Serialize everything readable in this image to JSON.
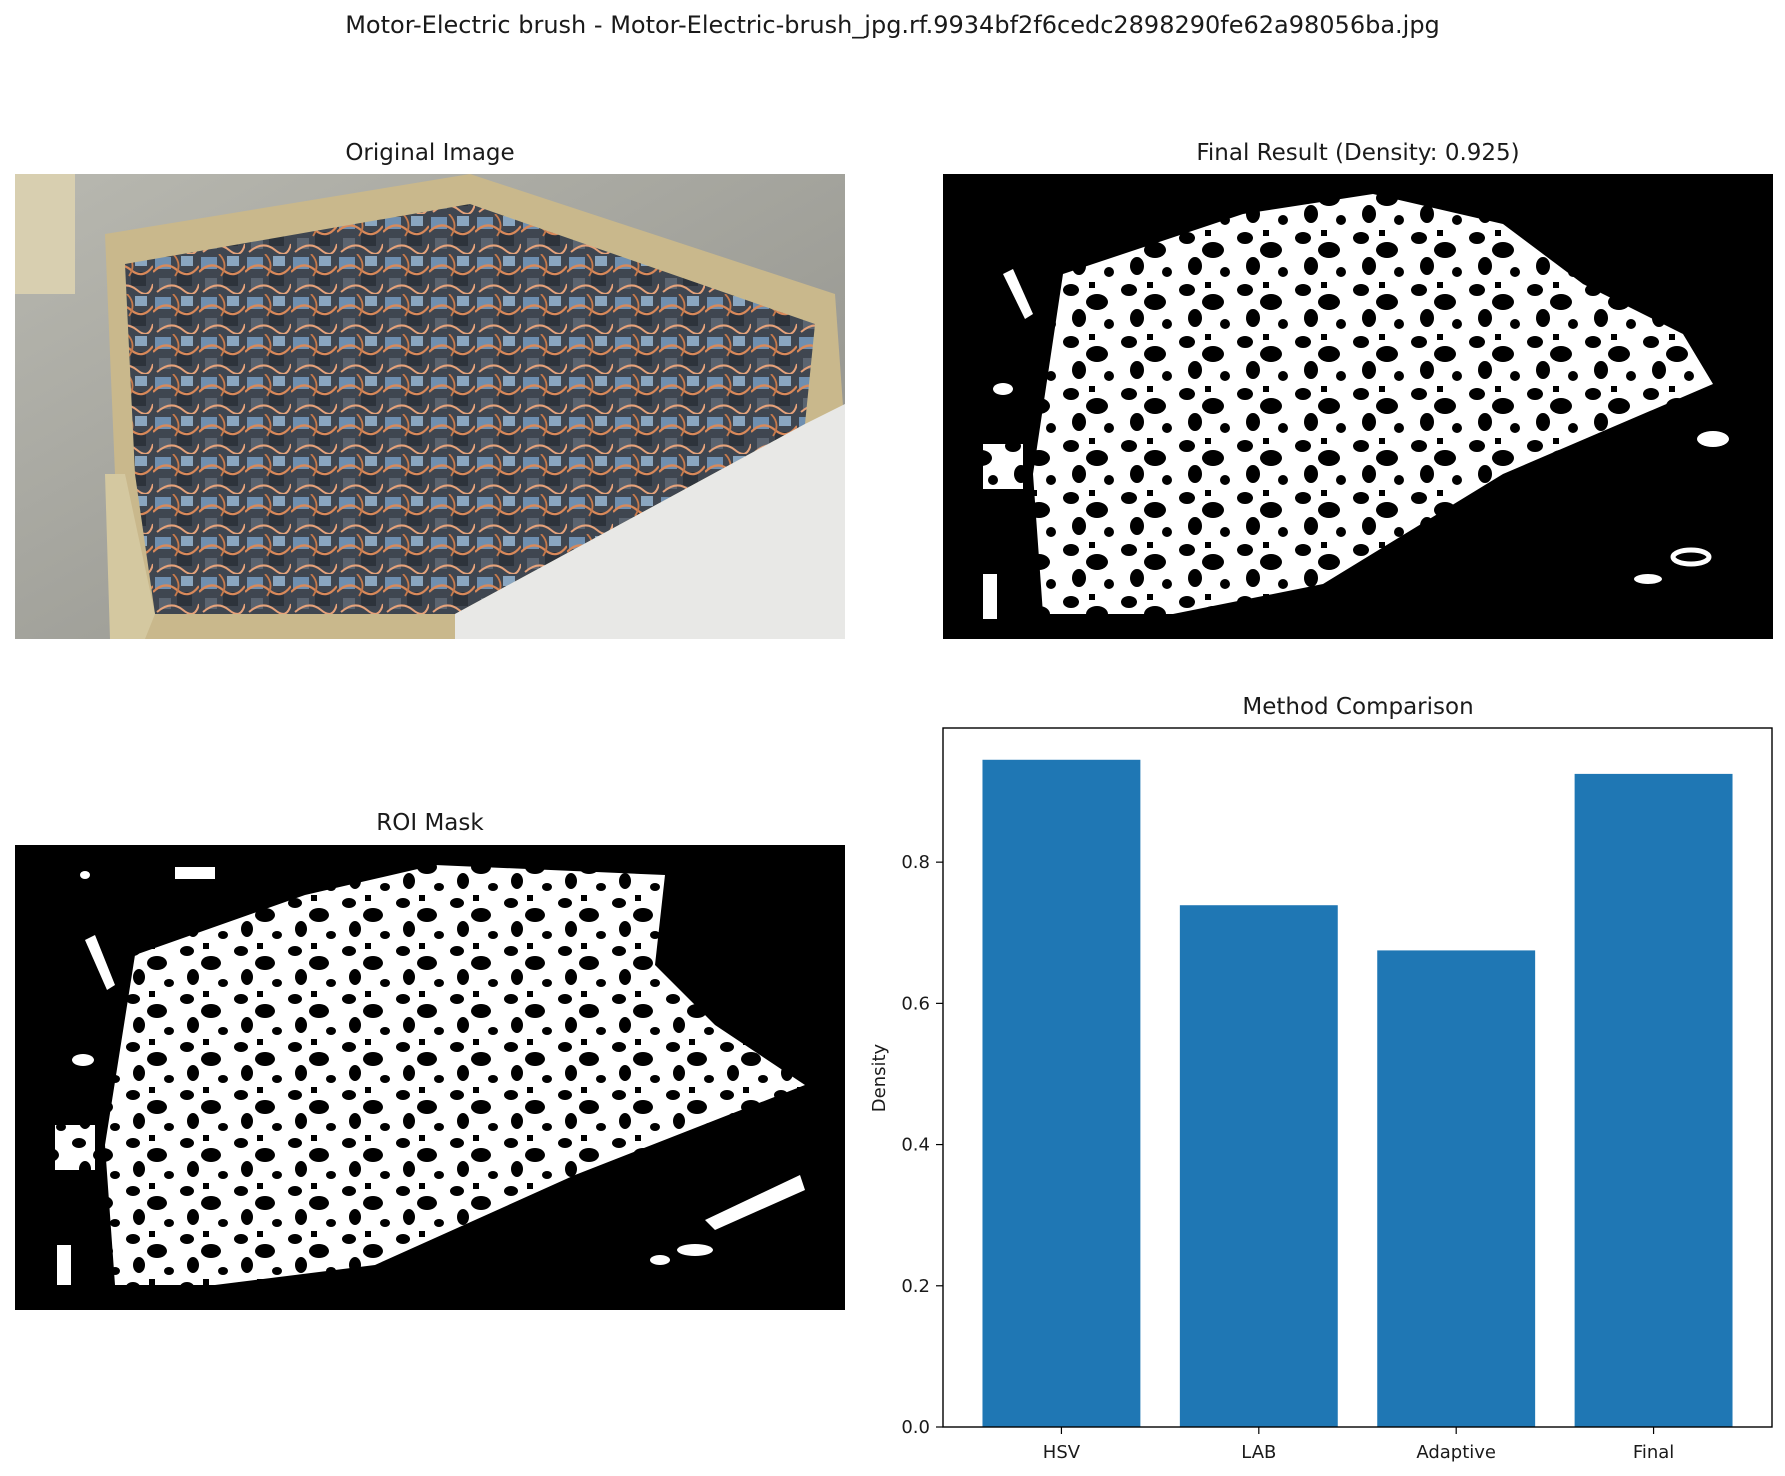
{
  "figure": {
    "title": "Motor-Electric brush - Motor-Electric-brush_jpg.rf.9934bf2f6cedc2898290fe62a98056ba.jpg"
  },
  "panels": {
    "original": {
      "title": "Original Image"
    },
    "final": {
      "title": "Final Result (Density: 0.925)"
    },
    "roi": {
      "title": "ROI Mask"
    },
    "comparison": {
      "title": "Method Comparison"
    }
  },
  "chart_data": {
    "type": "bar",
    "title": "Method Comparison",
    "categories": [
      "HSV",
      "LAB",
      "Adaptive",
      "Final"
    ],
    "values": [
      0.945,
      0.739,
      0.675,
      0.925
    ],
    "xlabel": "",
    "ylabel": "Density",
    "ylim": [
      0,
      0.99
    ],
    "yticks": [
      0.0,
      0.2,
      0.4,
      0.6,
      0.8
    ],
    "ytick_labels": [
      "0.0",
      "0.2",
      "0.4",
      "0.6",
      "0.8"
    ],
    "grid": false,
    "legend": "none",
    "bar_color": "#1f77b4"
  }
}
